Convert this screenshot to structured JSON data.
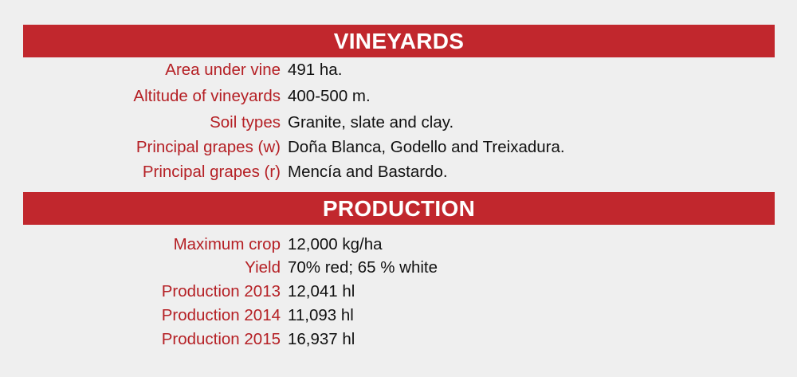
{
  "sections": [
    {
      "title": "VINEYARDS",
      "rows": [
        {
          "label": "Area under vine",
          "value": "491 ha."
        },
        {
          "label": "Altitude of vineyards",
          "value": "400-500 m."
        },
        {
          "label": "Soil types",
          "value": "Granite, slate and clay."
        },
        {
          "label": "Principal grapes (w)",
          "value": "Doña Blanca, Godello and Treixadura."
        },
        {
          "label": "Principal grapes (r)",
          "value": "Mencía and Bastardo."
        }
      ]
    },
    {
      "title": "PRODUCTION",
      "rows": [
        {
          "label": "Maximum crop",
          "value": "12,000 kg/ha"
        },
        {
          "label": "Yield",
          "value": "70% red; 65 % white"
        },
        {
          "label": "Production 2013",
          "value": "12,041 hl"
        },
        {
          "label": "Production 2014",
          "value": "11,093 hl"
        },
        {
          "label": "Production 2015",
          "value": "16,937 hl"
        }
      ]
    }
  ],
  "colors": {
    "header_bg": "#c1272d",
    "label": "#b52025",
    "value": "#111111",
    "page_bg": "#efefef"
  }
}
